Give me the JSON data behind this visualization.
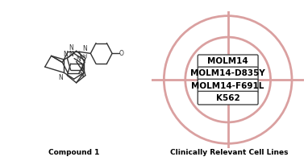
{
  "cell_lines": [
    "MOLM14",
    "MOLM14-D835Y",
    "MOLM14-F691L",
    "K562"
  ],
  "label_left": "Compound 1",
  "label_right": "Clinically Relevant Cell Lines",
  "bg_color": "#ffffff",
  "circle_color": "#daa0a0",
  "box_edge_color": "#444444",
  "box_face_color": "#ffffff",
  "text_color": "#000000",
  "fig_width": 3.82,
  "fig_height": 2.0,
  "dpi": 100
}
